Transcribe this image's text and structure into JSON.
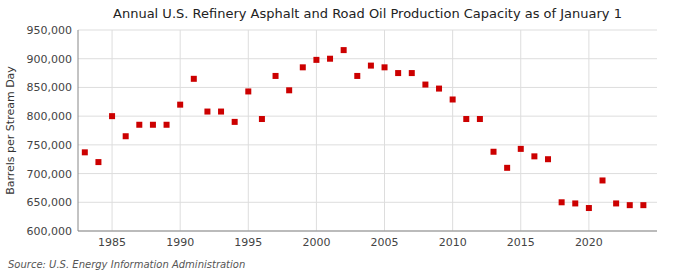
{
  "chart_data": {
    "type": "scatter",
    "title": "Annual U.S. Refinery Asphalt and Road Oil Production Capacity as of January 1",
    "y_label": "Barrels per Stream Day",
    "annotations": [
      "Source: U.S. Energy Information Administration"
    ],
    "x": [
      1983,
      1984,
      1985,
      1986,
      1987,
      1988,
      1989,
      1990,
      1991,
      1992,
      1993,
      1994,
      1995,
      1996,
      1997,
      1998,
      1999,
      2000,
      2001,
      2002,
      2003,
      2004,
      2005,
      2006,
      2007,
      2008,
      2009,
      2010,
      2011,
      2012,
      2013,
      2014,
      2015,
      2016,
      2017,
      2018,
      2019,
      2020,
      2021,
      2022,
      2023,
      2024
    ],
    "values": [
      737000,
      720000,
      800000,
      765000,
      785000,
      785000,
      785000,
      820000,
      865000,
      808000,
      808000,
      790000,
      843000,
      795000,
      870000,
      845000,
      885000,
      898000,
      900000,
      915000,
      870000,
      888000,
      885000,
      875000,
      875000,
      855000,
      848000,
      829000,
      795000,
      795000,
      738000,
      710000,
      743000,
      730000,
      725000,
      650000,
      648000,
      640000,
      688000,
      648000,
      645000,
      645000
    ],
    "color": "#cc0000",
    "marker": "square",
    "grid": true,
    "xlim": [
      1982.5,
      2025
    ],
    "xticks": [
      1985,
      1990,
      1995,
      2000,
      2005,
      2010,
      2015,
      2020
    ],
    "ylim": [
      600000,
      950000
    ],
    "yticks": [
      {
        "value": 600000,
        "label": "600,000"
      },
      {
        "value": 650000,
        "label": "650,000"
      },
      {
        "value": 700000,
        "label": "700,000"
      },
      {
        "value": 750000,
        "label": "750,000"
      },
      {
        "value": 800000,
        "label": "800,000"
      },
      {
        "value": 850000,
        "label": "850,000"
      },
      {
        "value": 900000,
        "label": "900,000"
      },
      {
        "value": 950000,
        "label": "950,000"
      }
    ]
  }
}
